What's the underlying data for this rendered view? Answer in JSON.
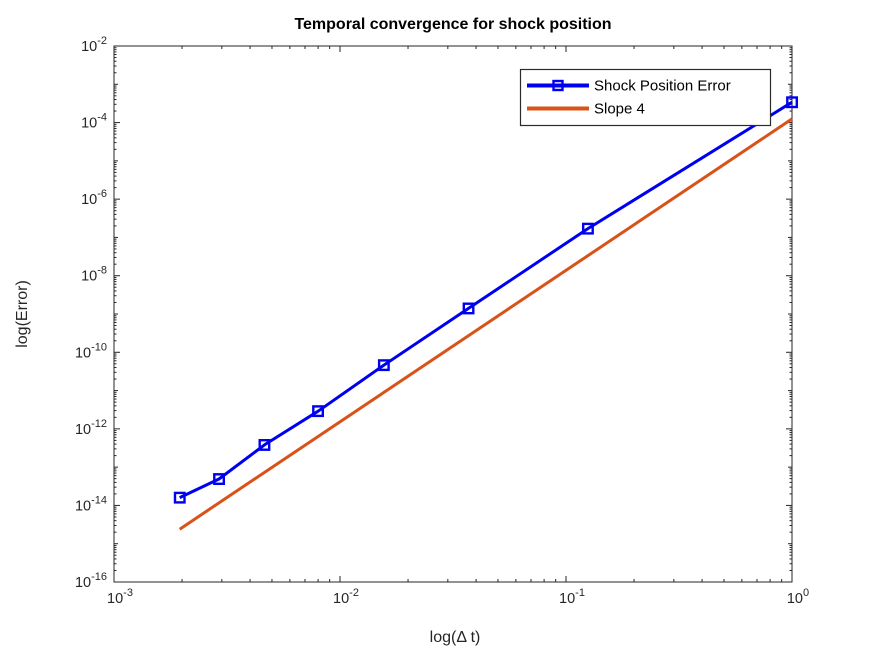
{
  "title": "Temporal convergence for shock position",
  "xlabel": "log(Δ t)",
  "ylabel": "log(Error)",
  "colors": {
    "series_blue": "#0000f0",
    "series_orange": "#d95319",
    "axis": "#262626",
    "background": "#ffffff"
  },
  "legend": {
    "position": "top-right",
    "entries": [
      {
        "label": "Shock Position Error",
        "color": "#0000f0",
        "marker": "square"
      },
      {
        "label": "Slope 4",
        "color": "#d95319",
        "marker": "none"
      }
    ]
  },
  "chart_data": {
    "type": "line",
    "title": "Temporal convergence for shock position",
    "xlabel": "log(Δ t)",
    "ylabel": "log(Error)",
    "xscale": "log",
    "yscale": "log",
    "xlim": [
      0.001,
      1
    ],
    "ylim": [
      1e-16,
      0.01
    ],
    "x_tick_exponents": [
      -3,
      -2,
      -1,
      0
    ],
    "y_tick_exponents": [
      -2,
      -4,
      -6,
      -8,
      -10,
      -12,
      -14,
      -16
    ],
    "grid": false,
    "legend_position": "top-right",
    "series": [
      {
        "name": "Shock Position Error",
        "color": "#0000f0",
        "marker": "square",
        "line_width": 3,
        "x": [
          0.001953125,
          0.002915452,
          0.00462963,
          0.008,
          0.015625,
          0.037037037,
          0.125,
          1
        ],
        "y": [
          1.6e-14,
          4.9e-14,
          3.8e-13,
          2.9e-12,
          4.6e-11,
          1.4e-09,
          1.7e-07,
          0.00034
        ]
      },
      {
        "name": "Slope 4",
        "color": "#d95319",
        "marker": "none",
        "line_width": 3,
        "x": [
          0.001953125,
          1
        ],
        "y": [
          2.4e-15,
          0.000125
        ]
      }
    ]
  }
}
